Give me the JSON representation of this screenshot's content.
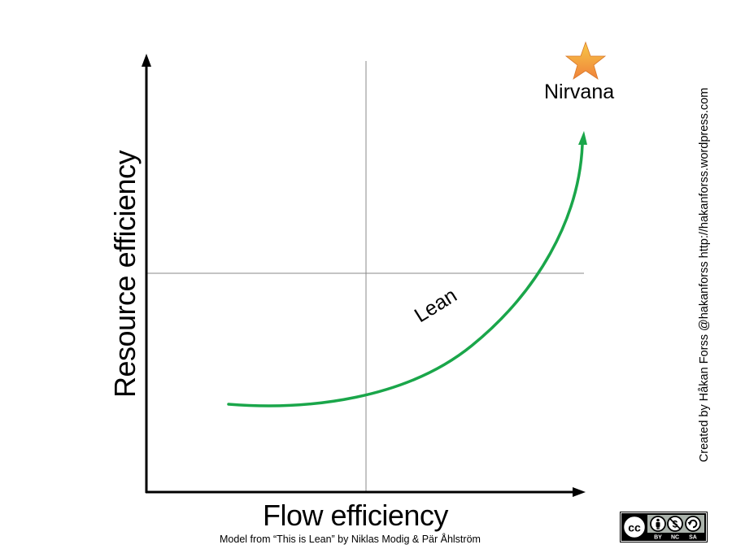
{
  "diagram": {
    "x_axis_label": "Flow efficiency",
    "y_axis_label": "Resource efficiency",
    "curve_label": "Lean",
    "goal_label": "Nirvana",
    "goal_icon": "star-icon",
    "curve_color": "#1aa64a",
    "axis_color": "#000000",
    "quadrant_line_color": "#888888",
    "star_color_top": "#f7c948",
    "star_color_bottom": "#f0823a"
  },
  "credit_text": "Created by Håkan Forss @hakanforss http://hakanforss.wordpress.com",
  "source_text": "Model from “This is Lean” by Niklas Modig &  Pär Åhlström",
  "license_badge": {
    "icon": "creative-commons-by-nc-sa-icon",
    "cc_text": "cc",
    "terms": [
      "BY",
      "NC",
      "SA"
    ]
  }
}
